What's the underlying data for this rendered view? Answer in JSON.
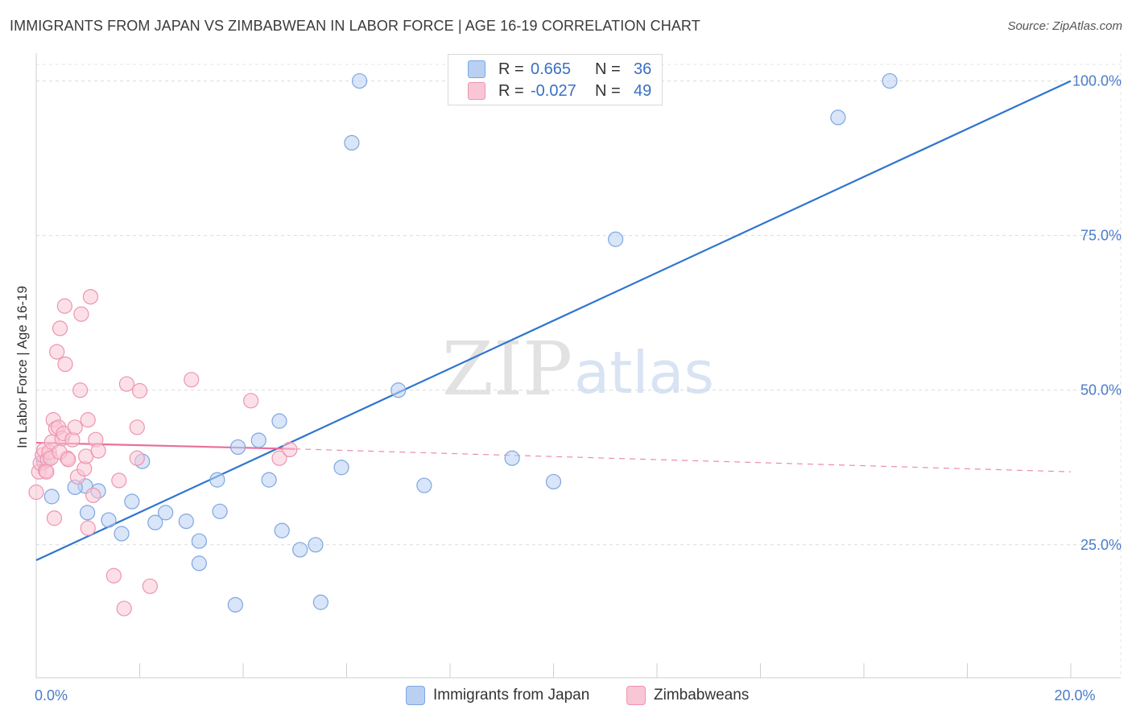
{
  "title": "IMMIGRANTS FROM JAPAN VS ZIMBABWEAN IN LABOR FORCE | AGE 16-19 CORRELATION CHART",
  "source": "Source: ZipAtlas.com",
  "watermark": {
    "zip": "ZIP",
    "atlas": "atlas"
  },
  "legend": {
    "rows": [
      {
        "r_label": "R =",
        "r_value": "0.665",
        "n_label": "N =",
        "n_value": "36",
        "fill": "#b9d0f3",
        "stroke": "#7ea6e0"
      },
      {
        "r_label": "R =",
        "r_value": "-0.027",
        "n_label": "N =",
        "n_value": "49",
        "fill": "#f9c6d5",
        "stroke": "#ee94b0"
      }
    ]
  },
  "bottom_legend": [
    {
      "label": "Immigrants from Japan",
      "fill": "#b9d0f3",
      "stroke": "#7ea6e0"
    },
    {
      "label": "Zimbabweans",
      "fill": "#f9c6d5",
      "stroke": "#ee94b0"
    }
  ],
  "chart_data": {
    "type": "scatter",
    "title": "IMMIGRANTS FROM JAPAN VS ZIMBABWEAN IN LABOR FORCE | AGE 16-19 CORRELATION CHART",
    "xlabel": "",
    "ylabel": "In Labor Force | Age 16-19",
    "xlim": [
      0,
      20
    ],
    "ylim": [
      3.5,
      104.5
    ],
    "x_tick_labels": [
      {
        "value": 0,
        "label": "0.0%"
      },
      {
        "value": 20,
        "label": "20.0%"
      }
    ],
    "x_minor_ticks": [
      0,
      2,
      4,
      6,
      8,
      10,
      12,
      14,
      16,
      18,
      20
    ],
    "y_ticks": [
      {
        "value": 25,
        "label": "25.0%"
      },
      {
        "value": 50,
        "label": "50.0%"
      },
      {
        "value": 75,
        "label": "75.0%"
      },
      {
        "value": 100,
        "label": "100.0%"
      }
    ],
    "grid": true,
    "series": [
      {
        "name": "Immigrants from Japan",
        "color": "#7ea6e0",
        "fill": "#b9d0f3",
        "points": [
          [
            0.3,
            32.8
          ],
          [
            0.95,
            34.5
          ],
          [
            0.75,
            34.3
          ],
          [
            0.99,
            30.2
          ],
          [
            1.2,
            33.7
          ],
          [
            1.4,
            29.0
          ],
          [
            1.65,
            26.8
          ],
          [
            1.85,
            32.0
          ],
          [
            2.05,
            38.5
          ],
          [
            2.3,
            28.6
          ],
          [
            2.5,
            30.2
          ],
          [
            2.9,
            28.8
          ],
          [
            3.15,
            22.0
          ],
          [
            3.15,
            25.6
          ],
          [
            3.5,
            35.5
          ],
          [
            3.55,
            30.4
          ],
          [
            3.85,
            15.3
          ],
          [
            3.9,
            40.8
          ],
          [
            4.3,
            41.9
          ],
          [
            4.5,
            35.5
          ],
          [
            4.75,
            27.3
          ],
          [
            4.7,
            45.0
          ],
          [
            5.1,
            24.2
          ],
          [
            5.4,
            25.0
          ],
          [
            5.5,
            15.7
          ],
          [
            5.9,
            37.5
          ],
          [
            6.1,
            90.0
          ],
          [
            6.25,
            100.0
          ],
          [
            7.0,
            50.0
          ],
          [
            7.5,
            34.6
          ],
          [
            9.2,
            39.0
          ],
          [
            10.0,
            35.2
          ],
          [
            11.2,
            74.4
          ],
          [
            15.5,
            94.1
          ],
          [
            16.5,
            100.0
          ],
          [
            0.15,
            38.4
          ]
        ]
      },
      {
        "name": "Zimbabweans",
        "color": "#ee94b0",
        "fill": "#f9c6d5",
        "points": [
          [
            0.0,
            33.5
          ],
          [
            0.05,
            36.8
          ],
          [
            0.08,
            38.2
          ],
          [
            0.12,
            39.5
          ],
          [
            0.15,
            40.3
          ],
          [
            0.18,
            37.0
          ],
          [
            0.22,
            38.8
          ],
          [
            0.25,
            40.0
          ],
          [
            0.28,
            39.0
          ],
          [
            0.3,
            41.6
          ],
          [
            0.33,
            45.2
          ],
          [
            0.38,
            43.8
          ],
          [
            0.4,
            56.2
          ],
          [
            0.43,
            44.0
          ],
          [
            0.46,
            60.0
          ],
          [
            0.5,
            42.2
          ],
          [
            0.53,
            43.0
          ],
          [
            0.56,
            54.2
          ],
          [
            0.6,
            39.0
          ],
          [
            0.55,
            63.6
          ],
          [
            0.7,
            42.0
          ],
          [
            0.75,
            44.0
          ],
          [
            0.8,
            36.0
          ],
          [
            0.85,
            50.0
          ],
          [
            0.87,
            62.3
          ],
          [
            0.93,
            37.3
          ],
          [
            0.96,
            39.3
          ],
          [
            1.0,
            45.2
          ],
          [
            1.0,
            27.7
          ],
          [
            1.05,
            65.1
          ],
          [
            1.1,
            33.0
          ],
          [
            1.15,
            42.0
          ],
          [
            1.2,
            40.2
          ],
          [
            1.5,
            20.0
          ],
          [
            1.6,
            35.4
          ],
          [
            1.7,
            14.7
          ],
          [
            1.75,
            51.0
          ],
          [
            1.95,
            39.0
          ],
          [
            1.95,
            44.0
          ],
          [
            2.0,
            49.9
          ],
          [
            2.2,
            18.3
          ],
          [
            3.0,
            51.7
          ],
          [
            4.15,
            48.3
          ],
          [
            4.7,
            39.0
          ],
          [
            4.9,
            40.4
          ],
          [
            0.35,
            29.3
          ],
          [
            0.2,
            36.8
          ],
          [
            0.45,
            40.0
          ],
          [
            0.62,
            38.8
          ]
        ]
      }
    ],
    "trend_lines": [
      {
        "series": "Immigrants from Japan",
        "style": "solid",
        "from": [
          0,
          22.5
        ],
        "to": [
          20,
          100.0
        ]
      },
      {
        "series": "Zimbabweans",
        "style": "solid",
        "from": [
          0,
          41.5
        ],
        "to": [
          5.0,
          40.5
        ]
      },
      {
        "series": "Zimbabweans",
        "style": "dashed",
        "from": [
          5.0,
          40.5
        ],
        "to": [
          20,
          36.8
        ]
      }
    ]
  }
}
